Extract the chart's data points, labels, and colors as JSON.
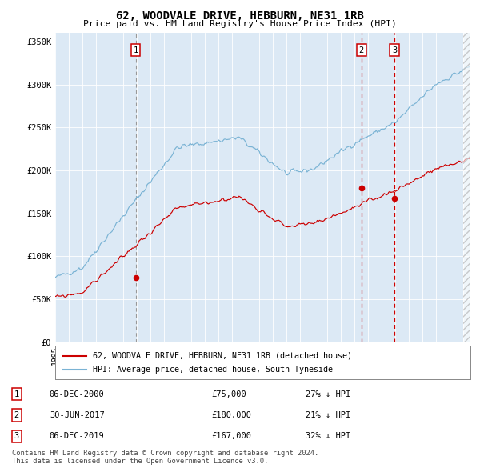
{
  "title": "62, WOODVALE DRIVE, HEBBURN, NE31 1RB",
  "subtitle": "Price paid vs. HM Land Registry's House Price Index (HPI)",
  "background_color": "#ffffff",
  "plot_bg_color": "#dce9f5",
  "hpi_color": "#7ab3d4",
  "price_color": "#cc0000",
  "ylim": [
    0,
    360000
  ],
  "yticks": [
    0,
    50000,
    100000,
    150000,
    200000,
    250000,
    300000,
    350000
  ],
  "ytick_labels": [
    "£0",
    "£50K",
    "£100K",
    "£150K",
    "£200K",
    "£250K",
    "£300K",
    "£350K"
  ],
  "xlim_start": 1995.0,
  "xlim_end": 2025.5,
  "sale1_date": 2000.92,
  "sale1_price": 75000,
  "sale2_date": 2017.5,
  "sale2_price": 180000,
  "sale3_date": 2019.92,
  "sale3_price": 167000,
  "legend_price_label": "62, WOODVALE DRIVE, HEBBURN, NE31 1RB (detached house)",
  "legend_hpi_label": "HPI: Average price, detached house, South Tyneside",
  "table_rows": [
    {
      "num": "1",
      "date": "06-DEC-2000",
      "price": "£75,000",
      "hpi": "27% ↓ HPI"
    },
    {
      "num": "2",
      "date": "30-JUN-2017",
      "price": "£180,000",
      "hpi": "21% ↓ HPI"
    },
    {
      "num": "3",
      "date": "06-DEC-2019",
      "price": "£167,000",
      "hpi": "32% ↓ HPI"
    }
  ],
  "footer": "Contains HM Land Registry data © Crown copyright and database right 2024.\nThis data is licensed under the Open Government Licence v3.0."
}
